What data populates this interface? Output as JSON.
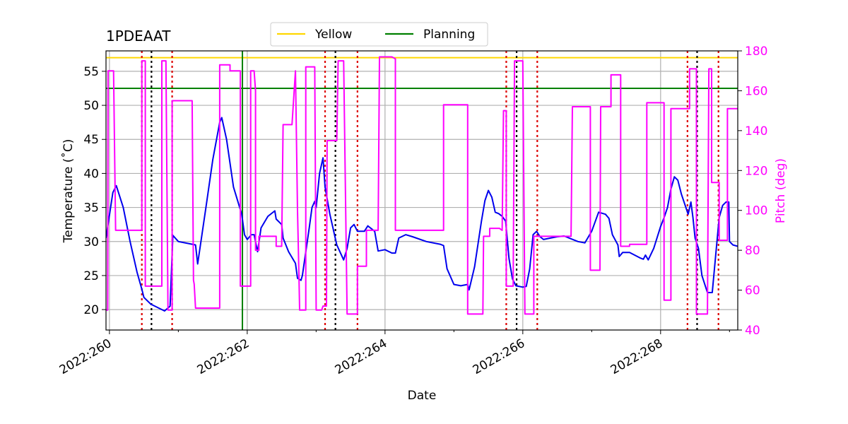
{
  "chart_data": {
    "type": "line",
    "title": "1PDEAAT",
    "xlabel": "Date",
    "ylabel_left": "Temperature ($^\\circ$C)",
    "ylabel_left_display": "Temperature (˚C)",
    "ylabel_right": "Pitch (deg)",
    "xlim": [
      259.95,
      269.12
    ],
    "ylim_left": [
      17,
      58
    ],
    "ylim_right": [
      40,
      180
    ],
    "x_ticks": [
      260,
      262,
      264,
      266,
      268
    ],
    "x_tick_labels": [
      "2022:260",
      "2022:262",
      "2022:264",
      "2022:266",
      "2022:268"
    ],
    "y_left_ticks": [
      20,
      25,
      30,
      35,
      40,
      45,
      50,
      55
    ],
    "y_right_ticks": [
      40,
      60,
      80,
      100,
      120,
      140,
      160,
      180
    ],
    "grid": true,
    "legend": {
      "placement": "top-center",
      "entries": [
        {
          "label": "Yellow",
          "color": "#ffd700"
        },
        {
          "label": "Planning",
          "color": "#008000"
        }
      ]
    },
    "limit_lines": [
      {
        "name": "Yellow",
        "value": 57,
        "color": "#ffd700"
      },
      {
        "name": "Planning",
        "value": 52.5,
        "color": "#008000"
      }
    ],
    "now_marker": {
      "x": 261.93,
      "color": "#008000"
    },
    "event_lines": {
      "red": [
        260.47,
        260.91,
        263.13,
        263.6,
        265.76,
        266.21,
        268.39,
        268.84
      ],
      "black": [
        260.61,
        263.28,
        265.91,
        268.53
      ]
    },
    "colors": {
      "temperature": "#0000ee",
      "pitch": "#ff00ff",
      "event_red": "#dd0000",
      "event_black": "#000000",
      "right_axis": "#ff00ff"
    },
    "series": [
      {
        "name": "Temperature",
        "axis": "left",
        "values": [
          [
            259.95,
            30.5
          ],
          [
            260.05,
            37.2
          ],
          [
            260.1,
            38.2
          ],
          [
            260.2,
            35
          ],
          [
            260.3,
            30
          ],
          [
            260.4,
            25.5
          ],
          [
            260.47,
            23
          ],
          [
            260.5,
            21.8
          ],
          [
            260.6,
            20.8
          ],
          [
            260.8,
            19.8
          ],
          [
            260.88,
            20.5
          ],
          [
            260.92,
            30.9
          ],
          [
            261,
            30
          ],
          [
            261.2,
            29.6
          ],
          [
            261.25,
            29.5
          ],
          [
            261.28,
            26.7
          ],
          [
            261.4,
            35
          ],
          [
            261.5,
            42
          ],
          [
            261.6,
            47.5
          ],
          [
            261.63,
            48.2
          ],
          [
            261.7,
            45
          ],
          [
            261.8,
            38
          ],
          [
            261.92,
            34
          ],
          [
            261.96,
            31
          ],
          [
            262,
            30.3
          ],
          [
            262.06,
            31
          ],
          [
            262.1,
            31
          ],
          [
            262.15,
            28.5
          ],
          [
            262.2,
            32
          ],
          [
            262.3,
            33.7
          ],
          [
            262.4,
            34.5
          ],
          [
            262.42,
            33.3
          ],
          [
            262.5,
            32.5
          ],
          [
            262.52,
            30.5
          ],
          [
            262.6,
            28.5
          ],
          [
            262.7,
            26.8
          ],
          [
            262.73,
            24.6
          ],
          [
            262.78,
            24.3
          ],
          [
            262.8,
            25
          ],
          [
            262.9,
            32
          ],
          [
            262.94,
            35
          ],
          [
            262.98,
            35.9
          ],
          [
            263,
            35
          ],
          [
            263.05,
            40
          ],
          [
            263.1,
            42.3
          ],
          [
            263.13,
            38
          ],
          [
            263.2,
            34
          ],
          [
            263.3,
            29.5
          ],
          [
            263.4,
            27.3
          ],
          [
            263.45,
            29
          ],
          [
            263.5,
            32
          ],
          [
            263.55,
            32.5
          ],
          [
            263.6,
            31.5
          ],
          [
            263.7,
            31.5
          ],
          [
            263.75,
            32.3
          ],
          [
            263.85,
            31.5
          ],
          [
            263.9,
            28.6
          ],
          [
            264,
            28.8
          ],
          [
            264.1,
            28.3
          ],
          [
            264.15,
            28.3
          ],
          [
            264.2,
            30.5
          ],
          [
            264.3,
            31
          ],
          [
            264.4,
            30.7
          ],
          [
            264.6,
            30
          ],
          [
            264.8,
            29.6
          ],
          [
            264.85,
            29.4
          ],
          [
            264.9,
            26
          ],
          [
            265,
            23.7
          ],
          [
            265.1,
            23.5
          ],
          [
            265.2,
            23.7
          ],
          [
            265.22,
            22.9
          ],
          [
            265.3,
            26.3
          ],
          [
            265.4,
            33
          ],
          [
            265.45,
            36
          ],
          [
            265.5,
            37.5
          ],
          [
            265.55,
            36.5
          ],
          [
            265.6,
            34.3
          ],
          [
            265.65,
            34.1
          ],
          [
            265.7,
            33.7
          ],
          [
            265.75,
            33
          ],
          [
            265.8,
            27.5
          ],
          [
            265.85,
            24.5
          ],
          [
            265.9,
            23.5
          ],
          [
            266,
            23.3
          ],
          [
            266.05,
            23.4
          ],
          [
            266.1,
            26
          ],
          [
            266.15,
            31
          ],
          [
            266.2,
            31.5
          ],
          [
            266.25,
            30.7
          ],
          [
            266.3,
            30.3
          ],
          [
            266.4,
            30.5
          ],
          [
            266.5,
            30.7
          ],
          [
            266.6,
            30.8
          ],
          [
            266.7,
            30.4
          ],
          [
            266.8,
            30
          ],
          [
            266.9,
            29.8
          ],
          [
            267,
            31.5
          ],
          [
            267.1,
            34.3
          ],
          [
            267.2,
            34
          ],
          [
            267.25,
            33.4
          ],
          [
            267.3,
            31
          ],
          [
            267.38,
            29.5
          ],
          [
            267.4,
            27.8
          ],
          [
            267.45,
            28.4
          ],
          [
            267.55,
            28.4
          ],
          [
            267.7,
            27.6
          ],
          [
            267.75,
            27.4
          ],
          [
            267.78,
            28
          ],
          [
            267.82,
            27.3
          ],
          [
            267.9,
            29
          ],
          [
            268,
            32.2
          ],
          [
            268.05,
            33.5
          ],
          [
            268.1,
            35
          ],
          [
            268.15,
            37.7
          ],
          [
            268.2,
            39.5
          ],
          [
            268.25,
            39
          ],
          [
            268.3,
            37
          ],
          [
            268.4,
            34
          ],
          [
            268.44,
            35.8
          ],
          [
            268.47,
            33.5
          ],
          [
            268.5,
            30.5
          ],
          [
            268.55,
            29
          ],
          [
            268.6,
            25
          ],
          [
            268.68,
            22.5
          ],
          [
            268.75,
            22.5
          ],
          [
            268.8,
            28
          ],
          [
            268.85,
            33.5
          ],
          [
            268.9,
            35.3
          ],
          [
            268.95,
            35.8
          ],
          [
            268.99,
            35.8
          ],
          [
            269.0,
            30
          ],
          [
            269.05,
            29.5
          ],
          [
            269.12,
            29.3
          ]
        ]
      },
      {
        "name": "Pitch",
        "axis": "right",
        "values": [
          [
            259.95,
            50
          ],
          [
            259.975,
            50
          ],
          [
            259.98,
            170
          ],
          [
            260.06,
            170
          ],
          [
            260.09,
            90
          ],
          [
            260.47,
            90
          ],
          [
            260.47,
            175
          ],
          [
            260.52,
            175
          ],
          [
            260.52,
            62
          ],
          [
            260.7,
            62
          ],
          [
            260.76,
            62
          ],
          [
            260.76,
            175
          ],
          [
            260.82,
            175
          ],
          [
            260.85,
            50
          ],
          [
            260.91,
            50
          ],
          [
            260.91,
            155
          ],
          [
            261.2,
            155
          ],
          [
            261.22,
            65
          ],
          [
            261.23,
            63
          ],
          [
            261.25,
            51
          ],
          [
            261.6,
            51
          ],
          [
            261.6,
            173
          ],
          [
            261.75,
            173
          ],
          [
            261.75,
            170
          ],
          [
            261.9,
            170
          ],
          [
            261.9,
            62
          ],
          [
            262.05,
            62
          ],
          [
            262.05,
            170
          ],
          [
            262.1,
            170
          ],
          [
            262.12,
            160
          ],
          [
            262.12,
            80
          ],
          [
            262.17,
            80
          ],
          [
            262.17,
            87
          ],
          [
            262.42,
            87
          ],
          [
            262.42,
            82
          ],
          [
            262.5,
            82
          ],
          [
            262.52,
            143
          ],
          [
            262.65,
            143
          ],
          [
            262.7,
            170
          ],
          [
            262.73,
            100
          ],
          [
            262.75,
            68
          ],
          [
            262.76,
            50
          ],
          [
            262.85,
            50
          ],
          [
            262.85,
            172
          ],
          [
            262.98,
            172
          ],
          [
            263,
            50
          ],
          [
            263.08,
            50
          ],
          [
            263.1,
            52
          ],
          [
            263.15,
            52
          ],
          [
            263.16,
            135
          ],
          [
            263.3,
            135
          ],
          [
            263.32,
            175
          ],
          [
            263.4,
            175
          ],
          [
            263.45,
            48
          ],
          [
            263.6,
            48
          ],
          [
            263.6,
            72
          ],
          [
            263.73,
            72
          ],
          [
            263.73,
            90
          ],
          [
            263.9,
            90
          ],
          [
            263.92,
            177
          ],
          [
            264.1,
            177
          ],
          [
            264.15,
            176
          ],
          [
            264.15,
            135
          ],
          [
            264.15,
            90
          ],
          [
            264.85,
            90
          ],
          [
            264.85,
            153
          ],
          [
            265.2,
            153
          ],
          [
            265.2,
            48
          ],
          [
            265.42,
            48
          ],
          [
            265.43,
            87
          ],
          [
            265.52,
            87
          ],
          [
            265.52,
            91
          ],
          [
            265.66,
            91
          ],
          [
            265.7,
            90
          ],
          [
            265.72,
            150
          ],
          [
            265.76,
            150
          ],
          [
            265.76,
            62
          ],
          [
            265.86,
            62
          ],
          [
            265.88,
            175
          ],
          [
            266,
            175
          ],
          [
            266.03,
            48
          ],
          [
            266.16,
            48
          ],
          [
            266.16,
            87
          ],
          [
            266.7,
            87
          ],
          [
            266.72,
            152
          ],
          [
            266.98,
            152
          ],
          [
            266.98,
            70
          ],
          [
            267.12,
            70
          ],
          [
            267.13,
            152
          ],
          [
            267.28,
            152
          ],
          [
            267.28,
            168
          ],
          [
            267.42,
            168
          ],
          [
            267.42,
            82
          ],
          [
            267.55,
            82
          ],
          [
            267.55,
            83
          ],
          [
            267.8,
            83
          ],
          [
            267.8,
            154
          ],
          [
            268.05,
            154
          ],
          [
            268.05,
            55
          ],
          [
            268.15,
            55
          ],
          [
            268.15,
            151
          ],
          [
            268.42,
            151
          ],
          [
            268.42,
            171
          ],
          [
            268.52,
            171
          ],
          [
            268.52,
            48
          ],
          [
            268.68,
            48
          ],
          [
            268.7,
            171
          ],
          [
            268.74,
            171
          ],
          [
            268.74,
            114
          ],
          [
            268.85,
            114
          ],
          [
            268.85,
            85
          ],
          [
            268.97,
            85
          ],
          [
            268.97,
            151
          ],
          [
            269.12,
            151
          ]
        ]
      }
    ]
  }
}
